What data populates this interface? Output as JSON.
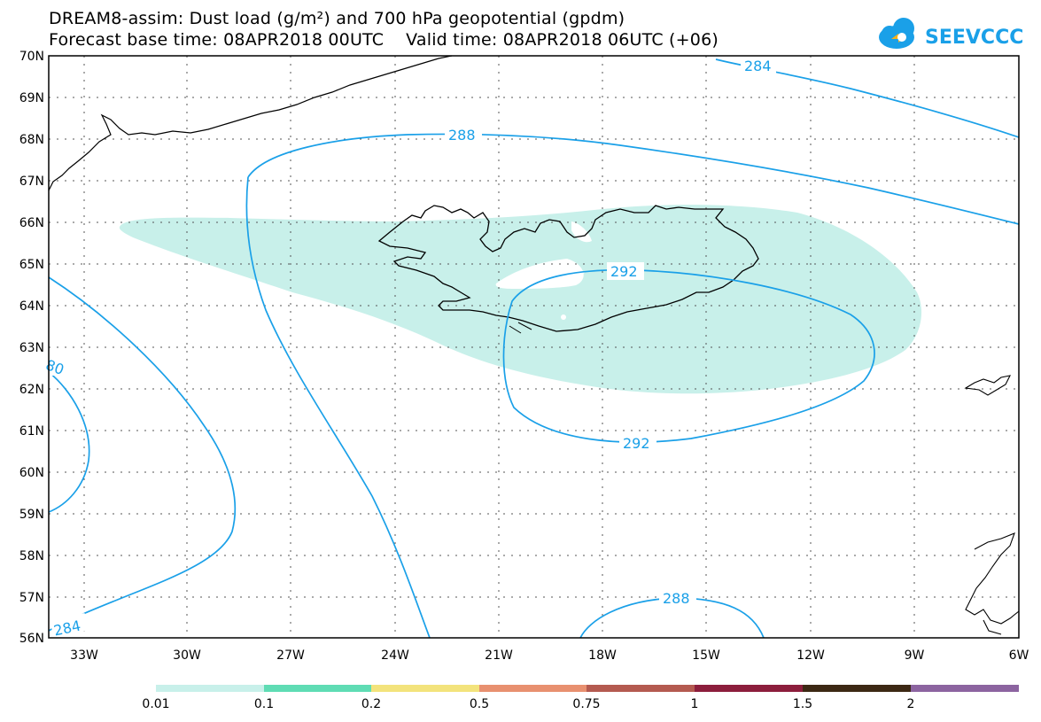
{
  "title": {
    "line1": "DREAM8-assim: Dust load (g/m²) and 700 hPa geopotential (gpdm)",
    "line2": "Forecast base time: 08APR2018 00UTC    Valid time: 08APR2018 06UTC (+06)"
  },
  "logo": {
    "text": "SEEVCCC",
    "icon": "cloud-icon",
    "color": "#1aa0e8"
  },
  "map": {
    "lat_labels": [
      "70N",
      "69N",
      "68N",
      "67N",
      "66N",
      "65N",
      "64N",
      "63N",
      "62N",
      "61N",
      "60N",
      "59N",
      "58N",
      "57N",
      "56N"
    ],
    "lon_labels": [
      "33W",
      "30W",
      "27W",
      "24W",
      "21W",
      "18W",
      "15W",
      "12W",
      "9W",
      "6W"
    ],
    "contour_labels": [
      "284",
      "288",
      "292",
      "292",
      "288",
      "284",
      "80"
    ],
    "contour_color": "#1aa0e8",
    "dust_color": "#c8f0ea",
    "land_outline_color": "#000000"
  },
  "colorbar": {
    "labels": [
      "0.01",
      "0.1",
      "0.2",
      "0.5",
      "0.75",
      "1",
      "1.5",
      "2"
    ],
    "colors": [
      "#c8f0ea",
      "#5fdcb4",
      "#f3e37c",
      "#e89070",
      "#b45a50",
      "#8c1e3c",
      "#3c2814",
      "#8c64a0"
    ]
  }
}
